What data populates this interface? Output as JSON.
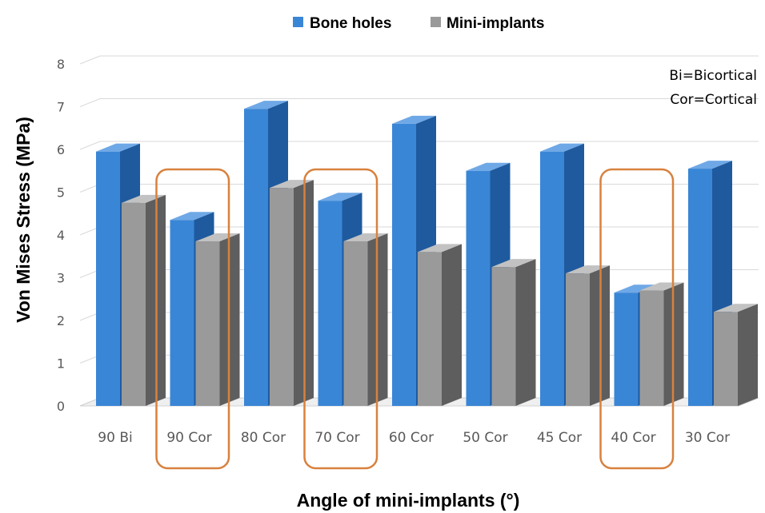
{
  "chart_data": {
    "type": "bar",
    "ylabel": "Von Mises Stress (MPa)",
    "xlabel": "Angle of mini-implants (°)",
    "ylim": [
      0,
      8
    ],
    "yticks": [
      "0",
      "1",
      "2",
      "3",
      "4",
      "5",
      "6",
      "7",
      "8"
    ],
    "categories": [
      "90 Bi",
      "90 Cor",
      "80 Cor",
      "70 Cor",
      "60 Cor",
      "50 Cor",
      "45 Cor",
      "40 Cor",
      "30 Cor"
    ],
    "series": [
      {
        "name": "Bone holes",
        "values": [
          5.95,
          4.35,
          6.95,
          4.8,
          6.6,
          5.5,
          5.95,
          2.65,
          5.55
        ],
        "color": "#3A86D6"
      },
      {
        "name": "Mini-implants",
        "values": [
          4.75,
          3.85,
          5.1,
          3.85,
          3.6,
          3.25,
          3.1,
          2.7,
          2.2
        ],
        "color": "#9A9A9A"
      }
    ],
    "highlighted_categories": [
      "90 Cor",
      "70 Cor",
      "40 Cor"
    ],
    "highlight_color": "#D8813E",
    "annotations": [
      "Bi=Bicortical",
      "Cor=Cortical"
    ],
    "legend_position": "top-center",
    "grid": true,
    "style": "3d-clustered-column"
  }
}
